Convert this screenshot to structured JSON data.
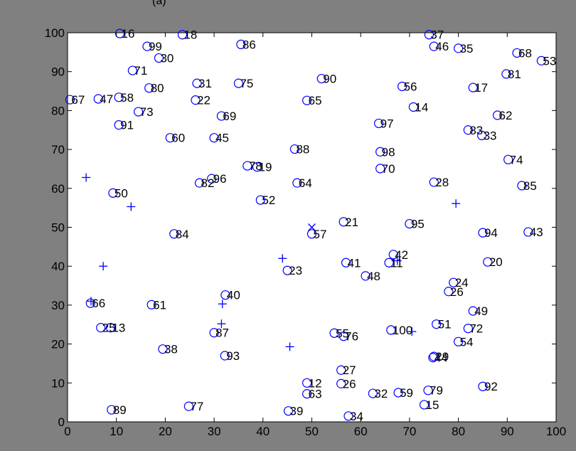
{
  "header_fragment": "(a)",
  "chart_data": {
    "type": "scatter",
    "title": "",
    "xlabel": "",
    "ylabel": "",
    "xlim": [
      0,
      100
    ],
    "ylim": [
      0,
      100
    ],
    "xticks": [
      0,
      10,
      20,
      30,
      40,
      50,
      60,
      70,
      80,
      90,
      100
    ],
    "yticks": [
      0,
      10,
      20,
      30,
      40,
      50,
      60,
      70,
      80,
      90,
      100
    ],
    "grid": false,
    "colors": {
      "marker": "#0000ff",
      "axes_bg": "#ffffff",
      "figure_bg": "#808080"
    },
    "series": [
      {
        "marker": "circle",
        "points": [
          {
            "label": "16",
            "x": 10.7,
            "y": 99.8
          },
          {
            "label": "18",
            "x": 23.5,
            "y": 99.5
          },
          {
            "label": "99",
            "x": 16.3,
            "y": 96.5
          },
          {
            "label": "30",
            "x": 18.7,
            "y": 93.5
          },
          {
            "label": "86",
            "x": 35.5,
            "y": 97.0
          },
          {
            "label": "37",
            "x": 74.0,
            "y": 99.5
          },
          {
            "label": "46",
            "x": 75.0,
            "y": 96.5
          },
          {
            "label": "35",
            "x": 80.0,
            "y": 96.0
          },
          {
            "label": "68",
            "x": 92.0,
            "y": 94.8
          },
          {
            "label": "53",
            "x": 97.0,
            "y": 92.8
          },
          {
            "label": "71",
            "x": 13.3,
            "y": 90.3
          },
          {
            "label": "90",
            "x": 52.0,
            "y": 88.2
          },
          {
            "label": "81",
            "x": 89.8,
            "y": 89.4
          },
          {
            "label": "31",
            "x": 26.5,
            "y": 87.0
          },
          {
            "label": "75",
            "x": 35.0,
            "y": 87.0
          },
          {
            "label": "80",
            "x": 16.7,
            "y": 85.8
          },
          {
            "label": "56",
            "x": 68.5,
            "y": 86.2
          },
          {
            "label": "17",
            "x": 83.0,
            "y": 85.9
          },
          {
            "label": "67",
            "x": 0.5,
            "y": 82.8
          },
          {
            "label": "47",
            "x": 6.3,
            "y": 83.0
          },
          {
            "label": "58",
            "x": 10.5,
            "y": 83.4
          },
          {
            "label": "22",
            "x": 26.2,
            "y": 82.7
          },
          {
            "label": "65",
            "x": 49.0,
            "y": 82.6
          },
          {
            "label": "73",
            "x": 14.5,
            "y": 79.7
          },
          {
            "label": "14",
            "x": 70.8,
            "y": 80.9
          },
          {
            "label": "69",
            "x": 31.5,
            "y": 78.6
          },
          {
            "label": "62",
            "x": 88.0,
            "y": 78.8
          },
          {
            "label": "91",
            "x": 10.5,
            "y": 76.3
          },
          {
            "label": "97",
            "x": 63.7,
            "y": 76.7
          },
          {
            "label": "83",
            "x": 82.0,
            "y": 75.0
          },
          {
            "label": "60",
            "x": 21.0,
            "y": 73.0
          },
          {
            "label": "45",
            "x": 30.0,
            "y": 73.0
          },
          {
            "label": "33",
            "x": 84.8,
            "y": 73.6
          },
          {
            "label": "88",
            "x": 46.5,
            "y": 70.1
          },
          {
            "label": "98",
            "x": 64.0,
            "y": 69.4
          },
          {
            "label": "74",
            "x": 90.2,
            "y": 67.4
          },
          {
            "label": "78",
            "x": 36.8,
            "y": 65.8
          },
          {
            "label": "19",
            "x": 38.8,
            "y": 65.5
          },
          {
            "label": "70",
            "x": 64.0,
            "y": 65.1
          },
          {
            "label": "96",
            "x": 29.5,
            "y": 62.5
          },
          {
            "label": "82",
            "x": 27.0,
            "y": 61.4
          },
          {
            "label": "64",
            "x": 47.0,
            "y": 61.4
          },
          {
            "label": "28",
            "x": 75.0,
            "y": 61.6
          },
          {
            "label": "85",
            "x": 93.0,
            "y": 60.7
          },
          {
            "label": "50",
            "x": 9.3,
            "y": 58.8
          },
          {
            "label": "52",
            "x": 39.5,
            "y": 57.0
          },
          {
            "label": "21",
            "x": 56.5,
            "y": 51.4
          },
          {
            "label": "95",
            "x": 70.0,
            "y": 50.9
          },
          {
            "label": "84",
            "x": 21.8,
            "y": 48.3
          },
          {
            "label": "57",
            "x": 50.0,
            "y": 48.3
          },
          {
            "label": "94",
            "x": 85.0,
            "y": 48.6
          },
          {
            "label": "43",
            "x": 94.3,
            "y": 48.8
          },
          {
            "label": "42",
            "x": 66.7,
            "y": 43.0
          },
          {
            "label": "41",
            "x": 57.0,
            "y": 40.9
          },
          {
            "label": "11",
            "x": 65.8,
            "y": 40.9
          },
          {
            "label": "20",
            "x": 86.0,
            "y": 41.1
          },
          {
            "label": "23",
            "x": 45.0,
            "y": 38.9
          },
          {
            "label": "48",
            "x": 61.0,
            "y": 37.5
          },
          {
            "label": "24",
            "x": 79.0,
            "y": 35.8
          },
          {
            "label": "26",
            "x": 78.0,
            "y": 33.5
          },
          {
            "label": "40",
            "x": 32.3,
            "y": 32.6
          },
          {
            "label": "66",
            "x": 4.7,
            "y": 30.5
          },
          {
            "label": "61",
            "x": 17.2,
            "y": 30.1
          },
          {
            "label": "49",
            "x": 83.0,
            "y": 28.5
          },
          {
            "label": "25",
            "x": 6.8,
            "y": 24.2
          },
          {
            "label": "13",
            "x": 8.8,
            "y": 24.2
          },
          {
            "label": "100",
            "x": 66.2,
            "y": 23.6
          },
          {
            "label": "51",
            "x": 75.5,
            "y": 25.1
          },
          {
            "label": "72",
            "x": 82.0,
            "y": 24.0
          },
          {
            "label": "87",
            "x": 30.0,
            "y": 22.9
          },
          {
            "label": "55",
            "x": 54.6,
            "y": 22.8
          },
          {
            "label": "76",
            "x": 56.5,
            "y": 22.0
          },
          {
            "label": "54",
            "x": 80.0,
            "y": 20.6
          },
          {
            "label": "38",
            "x": 19.5,
            "y": 18.7
          },
          {
            "label": "93",
            "x": 32.2,
            "y": 17.0
          },
          {
            "label": "29",
            "x": 75.0,
            "y": 16.8
          },
          {
            "label": "44",
            "x": 74.8,
            "y": 16.5
          },
          {
            "label": "27",
            "x": 56.0,
            "y": 13.3
          },
          {
            "label": "12",
            "x": 49.0,
            "y": 10.0
          },
          {
            "label": "26",
            "x": 56.0,
            "y": 9.8
          },
          {
            "label": "92",
            "x": 85.0,
            "y": 9.1
          },
          {
            "label": "79",
            "x": 73.8,
            "y": 8.1
          },
          {
            "label": "63",
            "x": 49.0,
            "y": 7.2
          },
          {
            "label": "32",
            "x": 62.5,
            "y": 7.3
          },
          {
            "label": "59",
            "x": 67.7,
            "y": 7.5
          },
          {
            "label": "77",
            "x": 24.8,
            "y": 4.0
          },
          {
            "label": "15",
            "x": 73.0,
            "y": 4.4
          },
          {
            "label": "89",
            "x": 9.0,
            "y": 3.1
          },
          {
            "label": "39",
            "x": 45.2,
            "y": 2.8
          },
          {
            "label": "34",
            "x": 57.5,
            "y": 1.5
          }
        ]
      },
      {
        "marker": "plus",
        "points": [
          {
            "x": 3.8,
            "y": 62.8
          },
          {
            "x": 13.0,
            "y": 55.3
          },
          {
            "x": 7.3,
            "y": 40.0
          },
          {
            "x": 4.8,
            "y": 31.0
          },
          {
            "x": 44.0,
            "y": 42.0
          },
          {
            "x": 31.7,
            "y": 30.3
          },
          {
            "x": 31.5,
            "y": 25.2
          },
          {
            "x": 45.5,
            "y": 19.3
          },
          {
            "x": 79.5,
            "y": 56.1
          },
          {
            "x": 67.5,
            "y": 41.4
          },
          {
            "x": 70.5,
            "y": 23.2
          }
        ]
      },
      {
        "marker": "cross",
        "points": [
          {
            "x": 50.0,
            "y": 50.0
          }
        ]
      }
    ]
  }
}
